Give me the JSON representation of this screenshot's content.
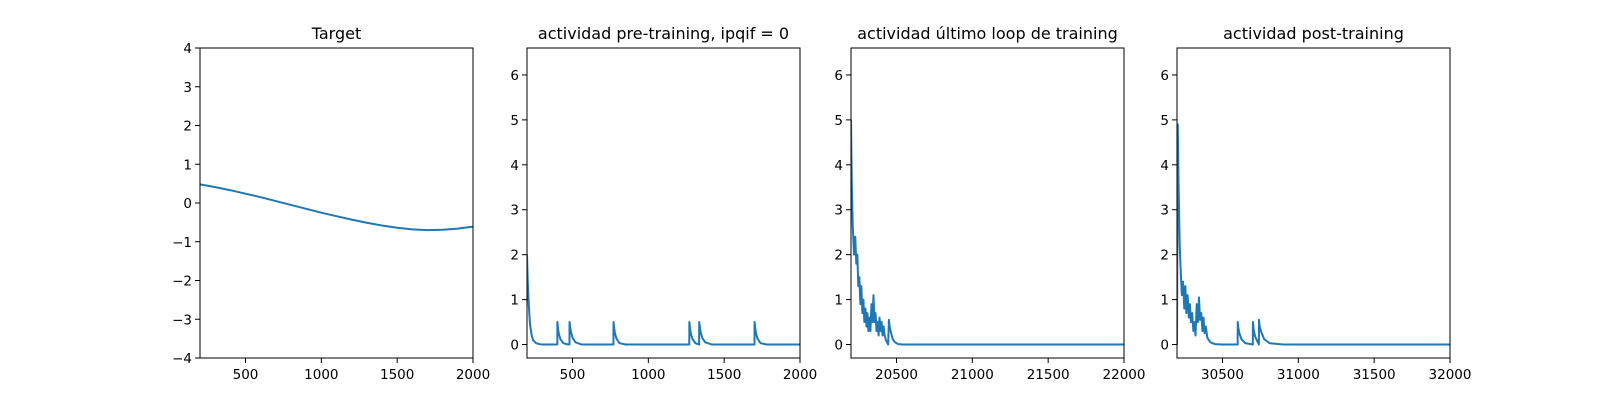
{
  "chart_data": [
    {
      "type": "line",
      "title": "Target",
      "xlabel": "",
      "ylabel": "",
      "xlim": [
        200,
        2000
      ],
      "ylim": [
        -4,
        4
      ],
      "xticks": [
        500,
        1000,
        1500,
        2000
      ],
      "yticks": [
        -4,
        -3,
        -2,
        -1,
        0,
        1,
        2,
        3,
        4
      ],
      "grid": false,
      "color": "#1f77b4",
      "series": [
        {
          "x": [
            200,
            300,
            400,
            500,
            600,
            700,
            800,
            900,
            1000,
            1100,
            1200,
            1300,
            1400,
            1500,
            1600,
            1700,
            1800,
            1900,
            2000
          ],
          "y": [
            0.48,
            0.41,
            0.33,
            0.24,
            0.15,
            0.05,
            -0.05,
            -0.15,
            -0.25,
            -0.34,
            -0.43,
            -0.51,
            -0.58,
            -0.64,
            -0.68,
            -0.7,
            -0.69,
            -0.66,
            -0.61
          ]
        }
      ]
    },
    {
      "type": "line",
      "title": "actividad pre-training, ipqif = 0",
      "xlabel": "",
      "ylabel": "",
      "xlim": [
        200,
        2000
      ],
      "ylim": [
        -0.3,
        6.6
      ],
      "xticks": [
        500,
        1000,
        1500,
        2000
      ],
      "yticks": [
        0,
        1,
        2,
        3,
        4,
        5,
        6
      ],
      "grid": false,
      "color": "#1f77b4",
      "series": [
        {
          "x": [
            200,
            205,
            210,
            215,
            220,
            230,
            240,
            260,
            280,
            300,
            400,
            400.5,
            405,
            410,
            420,
            440,
            470,
            480,
            480.5,
            485,
            490,
            500,
            520,
            560,
            770,
            770.5,
            775,
            780,
            790,
            810,
            850,
            1270,
            1270.5,
            1275,
            1280,
            1290,
            1310,
            1335,
            1335.5,
            1340,
            1345,
            1355,
            1375,
            1420,
            1700,
            1700.5,
            1705,
            1710,
            1720,
            1740,
            1780,
            2000
          ],
          "y": [
            2.0,
            1.4,
            1.0,
            0.7,
            0.45,
            0.22,
            0.1,
            0.03,
            0.01,
            0.0,
            0.0,
            0.5,
            0.34,
            0.24,
            0.12,
            0.03,
            0.0,
            0.0,
            0.5,
            0.38,
            0.28,
            0.15,
            0.05,
            0.0,
            0.0,
            0.5,
            0.36,
            0.25,
            0.13,
            0.03,
            0.0,
            0.0,
            0.5,
            0.36,
            0.25,
            0.13,
            0.03,
            0.0,
            0.5,
            0.38,
            0.28,
            0.15,
            0.05,
            0.0,
            0.0,
            0.5,
            0.36,
            0.25,
            0.13,
            0.03,
            0.0,
            0.0
          ]
        }
      ]
    },
    {
      "type": "line",
      "title": "actividad último loop de training",
      "xlabel": "",
      "ylabel": "",
      "xlim": [
        20200,
        22000
      ],
      "ylim": [
        -0.3,
        6.6
      ],
      "xticks": [
        20500,
        21000,
        21500,
        22000
      ],
      "yticks": [
        0,
        1,
        2,
        3,
        4,
        5,
        6
      ],
      "grid": false,
      "color": "#1f77b4",
      "series": [
        {
          "x": [
            20200,
            20205,
            20212,
            20220,
            20228,
            20235,
            20242,
            20248,
            20255,
            20262,
            20268,
            20275,
            20282,
            20288,
            20295,
            20302,
            20308,
            20315,
            20322,
            20328,
            20335,
            20342,
            20348,
            20355,
            20362,
            20368,
            20375,
            20382,
            20388,
            20395,
            20402,
            20408,
            20415,
            20422,
            20430,
            20438,
            20445,
            20450,
            20455,
            20465,
            20475,
            20490,
            20510,
            20540,
            20600,
            22000
          ],
          "y": [
            5.0,
            3.6,
            2.6,
            2.0,
            2.4,
            1.8,
            2.0,
            1.3,
            1.5,
            0.9,
            1.3,
            0.7,
            1.0,
            0.5,
            0.8,
            0.4,
            0.7,
            0.3,
            0.6,
            0.3,
            0.9,
            0.5,
            1.1,
            0.5,
            0.7,
            0.3,
            0.5,
            0.2,
            0.6,
            0.3,
            0.5,
            0.2,
            0.4,
            0.2,
            0.1,
            0.05,
            0.0,
            0.55,
            0.4,
            0.25,
            0.12,
            0.05,
            0.01,
            0.0,
            0.0,
            0.0
          ]
        }
      ]
    },
    {
      "type": "line",
      "title": "actividad post-training",
      "xlabel": "",
      "ylabel": "",
      "xlim": [
        30200,
        32000
      ],
      "ylim": [
        -0.3,
        6.6
      ],
      "xticks": [
        30500,
        31000,
        31500,
        32000
      ],
      "yticks": [
        0,
        1,
        2,
        3,
        4,
        5,
        6
      ],
      "grid": false,
      "color": "#1f77b4",
      "series": [
        {
          "x": [
            30200,
            30205,
            30210,
            30218,
            30225,
            30232,
            30240,
            30248,
            30255,
            30262,
            30270,
            30278,
            30285,
            30292,
            30300,
            30308,
            30315,
            30322,
            30330,
            30338,
            30345,
            30352,
            30360,
            30368,
            30375,
            30382,
            30390,
            30400,
            30420,
            30450,
            30500,
            30600,
            30600.5,
            30605,
            30612,
            30625,
            30650,
            30700,
            30700.5,
            30705,
            30715,
            30740,
            30740.5,
            30745,
            30755,
            30775,
            30810,
            30900,
            32000
          ],
          "y": [
            0.0,
            4.9,
            3.6,
            2.2,
            1.6,
            1.1,
            1.4,
            0.8,
            1.3,
            0.7,
            1.1,
            0.6,
            0.9,
            0.5,
            0.7,
            0.3,
            0.5,
            0.2,
            0.9,
            0.5,
            1.05,
            0.55,
            0.7,
            0.3,
            0.6,
            0.25,
            0.4,
            0.15,
            0.05,
            0.01,
            0.0,
            0.0,
            0.5,
            0.36,
            0.24,
            0.12,
            0.03,
            0.0,
            0.5,
            0.34,
            0.18,
            0.0,
            0.55,
            0.4,
            0.28,
            0.12,
            0.03,
            0.0,
            0.0
          ]
        }
      ]
    }
  ]
}
